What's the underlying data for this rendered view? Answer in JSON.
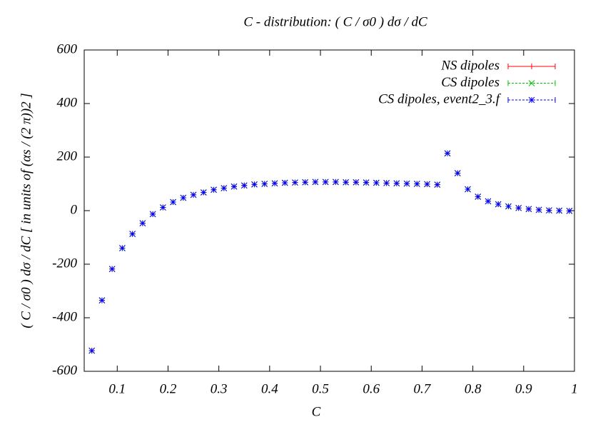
{
  "chart_data": {
    "type": "scatter",
    "title": "C - distribution:  ( C / σ0 ) dσ / dC",
    "x_label": "C",
    "y_label": "( C / σ0 ) dσ / dC  [ in units of (αs / (2 π))2 ]",
    "x": [
      0.05,
      0.07,
      0.09,
      0.11,
      0.13,
      0.15,
      0.17,
      0.19,
      0.21,
      0.23,
      0.25,
      0.27,
      0.29,
      0.31,
      0.33,
      0.35,
      0.37,
      0.39,
      0.41,
      0.43,
      0.45,
      0.47,
      0.49,
      0.51,
      0.53,
      0.55,
      0.57,
      0.59,
      0.61,
      0.63,
      0.65,
      0.67,
      0.69,
      0.71,
      0.73,
      0.75,
      0.77,
      0.79,
      0.81,
      0.83,
      0.85,
      0.87,
      0.89,
      0.91,
      0.93,
      0.95,
      0.97,
      0.99
    ],
    "series": [
      {
        "name": "NS dipoles",
        "color": "#ff0000",
        "marker": "plus",
        "values": [
          -523,
          -335,
          -218,
          -140,
          -87,
          -47,
          -13,
          12,
          32,
          48,
          59,
          68,
          78,
          84,
          90,
          94,
          98,
          100,
          102,
          104,
          105,
          106,
          107,
          107,
          107,
          106,
          106,
          105,
          104,
          103,
          102,
          101,
          100,
          99,
          97,
          214,
          140,
          80,
          52,
          35,
          24,
          16,
          10,
          6,
          3,
          1,
          0,
          -1
        ]
      },
      {
        "name": "CS dipoles",
        "color": "#00c000",
        "marker": "cross",
        "values": [
          -523,
          -335,
          -218,
          -140,
          -87,
          -47,
          -13,
          12,
          32,
          48,
          59,
          68,
          78,
          84,
          90,
          94,
          98,
          100,
          102,
          104,
          105,
          106,
          107,
          107,
          107,
          106,
          106,
          105,
          104,
          103,
          102,
          101,
          100,
          99,
          97,
          214,
          140,
          80,
          52,
          35,
          24,
          16,
          10,
          6,
          3,
          1,
          0,
          -1
        ]
      },
      {
        "name": "CS dipoles, event2_3.f",
        "color": "#0000ff",
        "marker": "star",
        "values": [
          -523,
          -335,
          -218,
          -140,
          -87,
          -47,
          -13,
          12,
          32,
          48,
          59,
          68,
          78,
          84,
          90,
          94,
          98,
          100,
          102,
          104,
          105,
          106,
          107,
          107,
          107,
          106,
          106,
          105,
          104,
          103,
          102,
          101,
          100,
          99,
          97,
          214,
          140,
          80,
          52,
          35,
          24,
          16,
          10,
          6,
          3,
          1,
          0,
          -1
        ]
      }
    ],
    "xlim": [
      0.035,
      1
    ],
    "ylim": [
      -600,
      600
    ],
    "xticks": [
      0.1,
      0.2,
      0.3,
      0.4,
      0.5,
      0.6,
      0.7,
      0.8,
      0.9,
      1
    ],
    "yticks": [
      -600,
      -400,
      -200,
      0,
      200,
      400,
      600
    ],
    "grid": false,
    "legend": "top-right"
  }
}
